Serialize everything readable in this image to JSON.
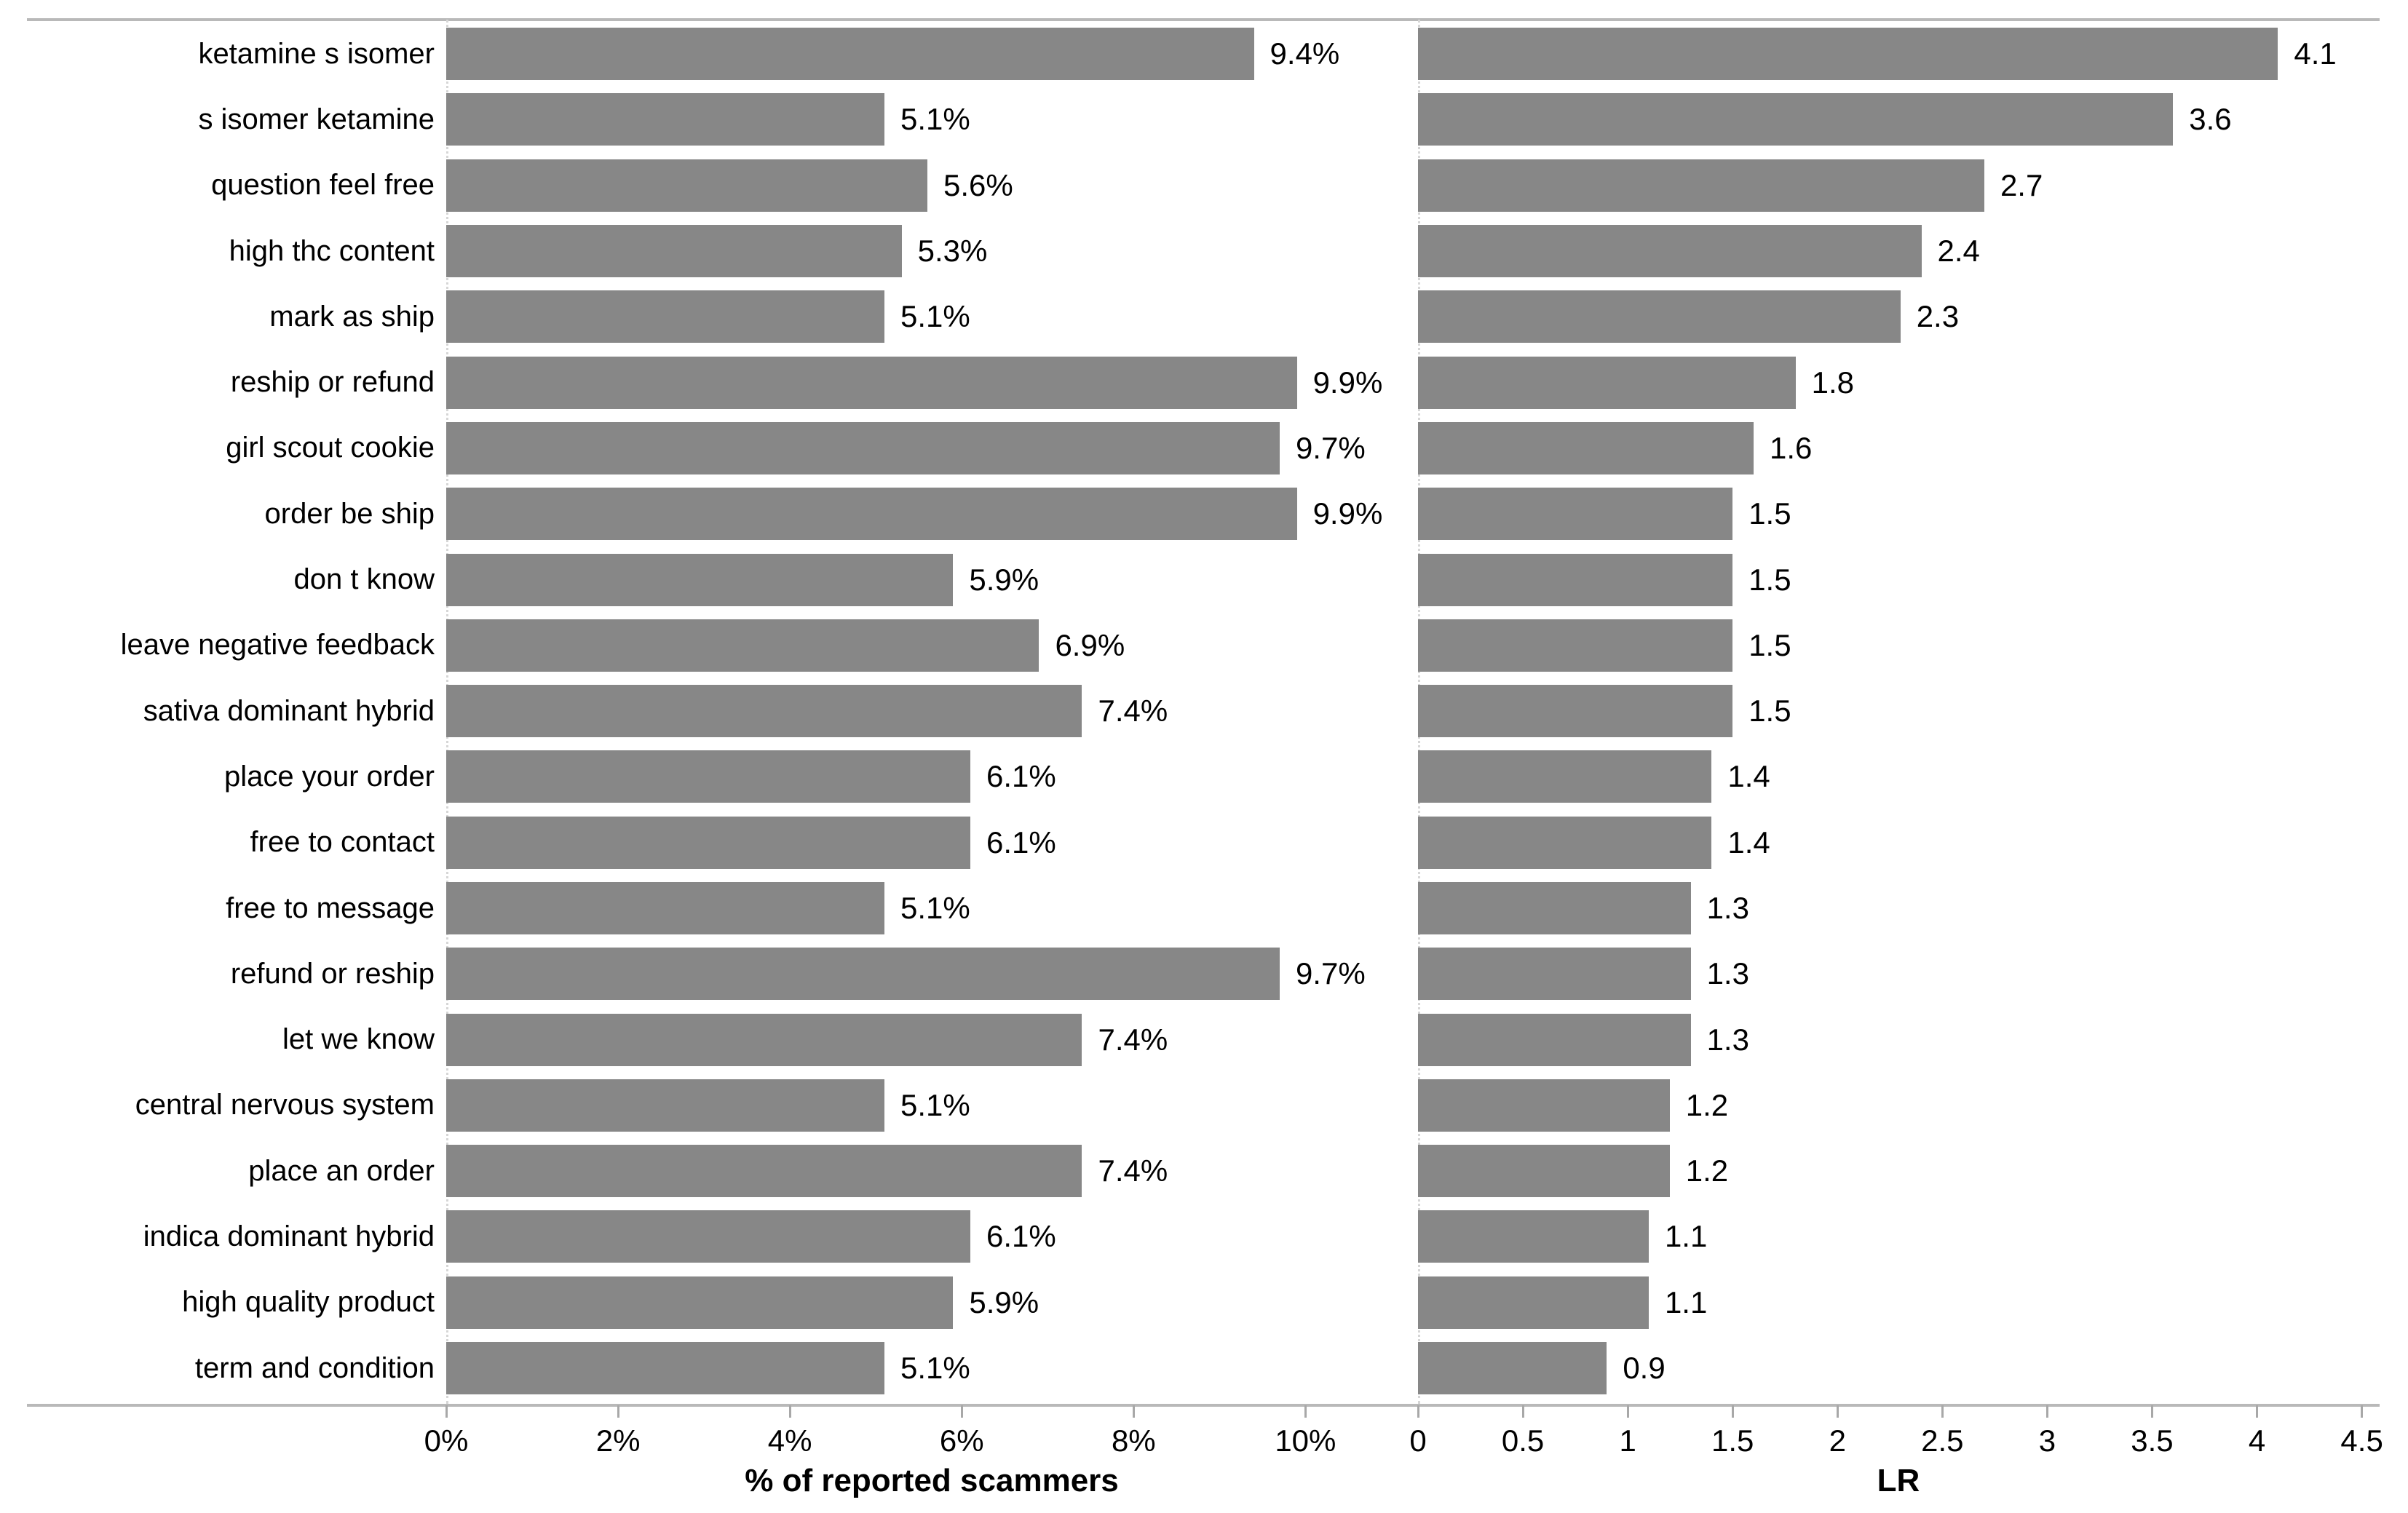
{
  "figure": {
    "background": "#ffffff"
  },
  "colors": {
    "bar": "#878787",
    "spine": "#b9b9b9",
    "tick": "#a8a8a8",
    "text": "#000000",
    "zero_line": "#d6d6d6"
  },
  "axes": {
    "left": {
      "title": "% of reported scammers",
      "tick_labels": [
        "0%",
        "2%",
        "4%",
        "6%",
        "8%",
        "10%"
      ],
      "tick_values": [
        0,
        2,
        4,
        6,
        8,
        10
      ]
    },
    "right": {
      "title": "LR",
      "tick_labels": [
        "0",
        "0.5",
        "1",
        "1.5",
        "2",
        "2.5",
        "3",
        "3.5",
        "4",
        "4.5"
      ],
      "tick_values": [
        0,
        0.5,
        1,
        1.5,
        2,
        2.5,
        3,
        3.5,
        4,
        4.5
      ]
    }
  },
  "chart_data": {
    "type": "bar",
    "orientation": "horizontal",
    "title": "",
    "grid": false,
    "legend": false,
    "value_labels_shown": true,
    "bar_color": "#878787",
    "categories": [
      "ketamine s isomer",
      "s isomer ketamine",
      "question feel free",
      "high thc content",
      "mark as ship",
      "reship or refund",
      "girl scout cookie",
      "order be ship",
      "don t know",
      "leave negative feedback",
      "sativa dominant hybrid",
      "place your order",
      "free to contact",
      "free to message",
      "refund or reship",
      "let we know",
      "central nervous system",
      "place an order",
      "indica dominant hybrid",
      "high quality product",
      "term and condition"
    ],
    "series": [
      {
        "name": "% of reported scammers",
        "panel": "left",
        "xlabel": "% of reported scammers",
        "xlim": [
          0,
          11.31
        ],
        "ticks": [
          0,
          2,
          4,
          6,
          8,
          10
        ],
        "tick_labels": [
          "0%",
          "2%",
          "4%",
          "6%",
          "8%",
          "10%"
        ],
        "values": [
          9.4,
          5.1,
          5.6,
          5.3,
          5.1,
          9.9,
          9.7,
          9.9,
          5.9,
          6.9,
          7.4,
          6.1,
          6.1,
          5.1,
          9.7,
          7.4,
          5.1,
          7.4,
          6.1,
          5.9,
          5.1
        ],
        "labels": [
          "9.4%",
          "5.1%",
          "5.6%",
          "5.3%",
          "5.1%",
          "9.9%",
          "9.7%",
          "9.9%",
          "5.9%",
          "6.9%",
          "7.4%",
          "6.1%",
          "6.1%",
          "5.1%",
          "9.7%",
          "7.4%",
          "5.1%",
          "7.4%",
          "6.1%",
          "5.9%",
          "5.1%"
        ]
      },
      {
        "name": "LR",
        "panel": "right",
        "xlabel": "LR",
        "xlim": [
          0,
          4.72
        ],
        "ticks": [
          0,
          0.5,
          1,
          1.5,
          2,
          2.5,
          3,
          3.5,
          4,
          4.5
        ],
        "tick_labels": [
          "0",
          "0.5",
          "1",
          "1.5",
          "2",
          "2.5",
          "3",
          "3.5",
          "4",
          "4.5"
        ],
        "values": [
          4.1,
          3.6,
          2.7,
          2.4,
          2.3,
          1.8,
          1.6,
          1.5,
          1.5,
          1.5,
          1.5,
          1.4,
          1.4,
          1.3,
          1.3,
          1.3,
          1.2,
          1.2,
          1.1,
          1.1,
          0.9
        ],
        "labels": [
          "4.1",
          "3.6",
          "2.7",
          "2.4",
          "2.3",
          "1.8",
          "1.6",
          "1.5",
          "1.5",
          "1.5",
          "1.5",
          "1.4",
          "1.4",
          "1.3",
          "1.3",
          "1.3",
          "1.2",
          "1.2",
          "1.1",
          "1.1",
          "0.9"
        ]
      }
    ]
  }
}
